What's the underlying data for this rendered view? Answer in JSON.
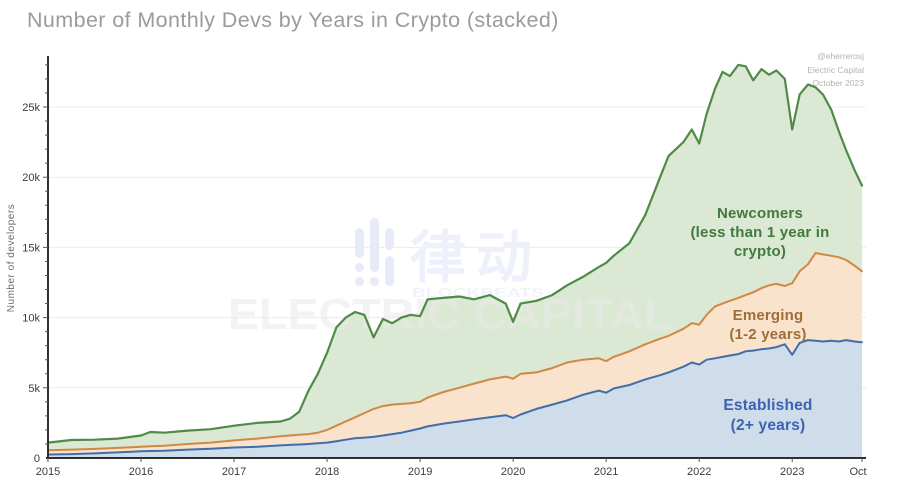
{
  "title": "Number of Monthly Devs by Years in Crypto (stacked)",
  "credits": {
    "handle": "@eherrerosj",
    "org": "Electric Capital",
    "date": "October 2023"
  },
  "watermarks": {
    "blockbeats_cn": "律动",
    "blockbeats_en": "BLOCKBEATS",
    "electric": "ELECTRIC CAPITAL"
  },
  "axis": {
    "y_label": "Number of developers",
    "y_ticks": [
      "0",
      "5k",
      "10k",
      "15k",
      "20k",
      "25k"
    ],
    "y_tick_values": [
      0,
      5000,
      10000,
      15000,
      20000,
      25000
    ],
    "y_minor_step": 1000,
    "y_minor_max": 28000,
    "x_ticks": [
      "2015",
      "2016",
      "2017",
      "2018",
      "2019",
      "2020",
      "2021",
      "2022",
      "2023",
      "Oct"
    ],
    "x_tick_years": [
      2015,
      2016,
      2017,
      2018,
      2019,
      2020,
      2021,
      2022,
      2023,
      2023.75
    ]
  },
  "series_labels": {
    "newcomers_line1": "Newcomers",
    "newcomers_line2": "(less than 1 year in crypto)",
    "emerging_line1": "Emerging",
    "emerging_line2": "(1-2 years)",
    "established_line1": "Established",
    "established_line2": "(2+ years)"
  },
  "colors": {
    "title_gray": "#9b9b9b",
    "grid": "#ececec",
    "axis": "#2f2f2f",
    "tick_text": "#3d3d3d",
    "established_line": "#3f6eaa",
    "established_fill": "#cfdcea",
    "emerging_line": "#d08844",
    "emerging_fill": "#fae3cd",
    "newcomers_line": "#4e8b47",
    "newcomers_fill": "#dbe8d3"
  },
  "chart_data": {
    "type": "area",
    "stacked": true,
    "title": "Number of Monthly Devs by Years in Crypto (stacked)",
    "xlabel": "",
    "ylabel": "Number of developers",
    "ylim": [
      0,
      28000
    ],
    "xlim": [
      2015,
      2023.75
    ],
    "grid": "horizontal-major-only",
    "legend_position": "inline-annotations",
    "x": [
      2015.0,
      2015.25,
      2015.5,
      2015.75,
      2016.0,
      2016.1,
      2016.25,
      2016.5,
      2016.75,
      2017.0,
      2017.25,
      2017.5,
      2017.6,
      2017.7,
      2017.8,
      2017.9,
      2018.0,
      2018.1,
      2018.2,
      2018.3,
      2018.4,
      2018.5,
      2018.6,
      2018.7,
      2018.8,
      2018.9,
      2019.0,
      2019.08,
      2019.25,
      2019.42,
      2019.58,
      2019.75,
      2019.92,
      2020.0,
      2020.08,
      2020.25,
      2020.42,
      2020.58,
      2020.75,
      2020.92,
      2021.0,
      2021.08,
      2021.25,
      2021.42,
      2021.58,
      2021.67,
      2021.83,
      2021.92,
      2022.0,
      2022.08,
      2022.17,
      2022.25,
      2022.33,
      2022.42,
      2022.5,
      2022.58,
      2022.67,
      2022.75,
      2022.83,
      2022.92,
      2023.0,
      2023.08,
      2023.17,
      2023.25,
      2023.33,
      2023.42,
      2023.5,
      2023.58,
      2023.67,
      2023.75
    ],
    "series": [
      {
        "name": "Established (2+ years)",
        "stack_order": 0,
        "line_color": "#3f6eaa",
        "fill_color": "#cfdcea",
        "values": [
          250,
          280,
          330,
          400,
          480,
          500,
          520,
          600,
          660,
          750,
          800,
          900,
          930,
          960,
          1000,
          1050,
          1100,
          1200,
          1300,
          1400,
          1450,
          1500,
          1600,
          1700,
          1800,
          1950,
          2100,
          2250,
          2450,
          2600,
          2750,
          2900,
          3050,
          2850,
          3100,
          3500,
          3800,
          4100,
          4500,
          4800,
          4650,
          4950,
          5200,
          5600,
          5900,
          6100,
          6500,
          6800,
          6650,
          7000,
          7100,
          7200,
          7300,
          7400,
          7600,
          7650,
          7750,
          7800,
          7900,
          8100,
          7350,
          8200,
          8400,
          8350,
          8300,
          8350,
          8300,
          8400,
          8300,
          8250
        ]
      },
      {
        "name": "Emerging (1-2 years)",
        "stack_order": 1,
        "line_color": "#d08844",
        "fill_color": "#fae3cd",
        "values": [
          300,
          320,
          320,
          320,
          320,
          330,
          350,
          400,
          440,
          500,
          580,
          650,
          670,
          690,
          700,
          750,
          900,
          1100,
          1300,
          1500,
          1750,
          2000,
          2100,
          2100,
          2050,
          1950,
          1900,
          2050,
          2250,
          2400,
          2550,
          2700,
          2750,
          2800,
          2900,
          2600,
          2600,
          2700,
          2500,
          2300,
          2250,
          2250,
          2400,
          2500,
          2600,
          2600,
          2700,
          2800,
          2850,
          3200,
          3700,
          3800,
          3900,
          4000,
          4000,
          4150,
          4350,
          4500,
          4500,
          4150,
          5100,
          5100,
          5400,
          6250,
          6200,
          6050,
          6000,
          5700,
          5400,
          5050
        ]
      },
      {
        "name": "Newcomers (less than 1 year in crypto)",
        "stack_order": 2,
        "line_color": "#4e8b47",
        "fill_color": "#dbe8d3",
        "values": [
          550,
          680,
          650,
          660,
          800,
          1020,
          930,
          950,
          950,
          1050,
          1120,
          1050,
          1200,
          1650,
          3100,
          4200,
          5500,
          7000,
          7400,
          7500,
          7000,
          5100,
          6200,
          5800,
          6150,
          6300,
          6100,
          7000,
          6700,
          6500,
          6000,
          6000,
          5200,
          4050,
          5000,
          5100,
          5200,
          5500,
          5900,
          6500,
          7000,
          7200,
          7700,
          9200,
          11500,
          12800,
          13300,
          13800,
          12900,
          14300,
          15500,
          16500,
          16000,
          16600,
          16300,
          15100,
          15600,
          15000,
          15200,
          14750,
          10950,
          12600,
          12800,
          11800,
          11400,
          10400,
          9000,
          7800,
          6800,
          6100
        ]
      }
    ]
  }
}
